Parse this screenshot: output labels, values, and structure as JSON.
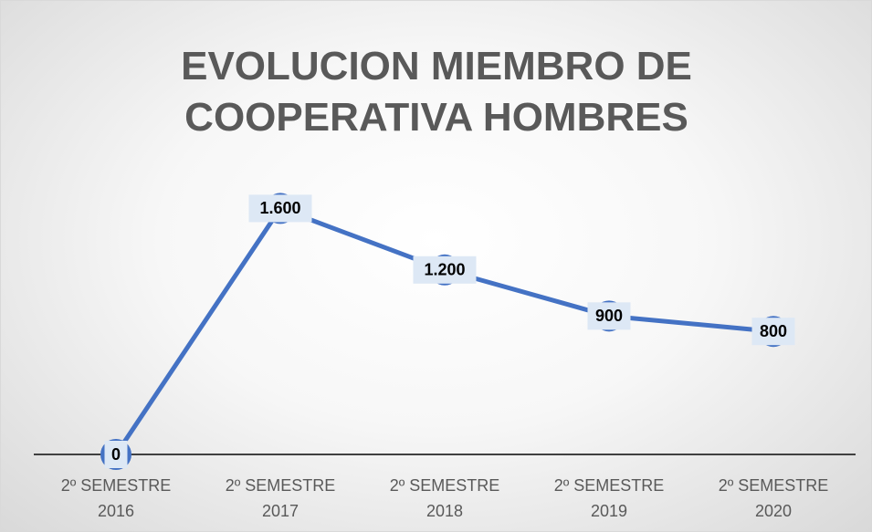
{
  "chart_data": {
    "type": "line",
    "title": "EVOLUCION MIEMBRO DE COOPERATIVA HOMBRES",
    "categories": [
      "2º SEMESTRE 2016",
      "2º SEMESTRE 2017",
      "2º SEMESTRE 2018",
      "2º SEMESTRE 2019",
      "2º SEMESTRE 2020"
    ],
    "values": [
      0,
      1600,
      1200,
      900,
      800
    ],
    "value_labels": [
      "0",
      "1.600",
      "1.200",
      "900",
      "800"
    ],
    "color": "#4472c4",
    "ylim": [
      0,
      2000
    ]
  }
}
